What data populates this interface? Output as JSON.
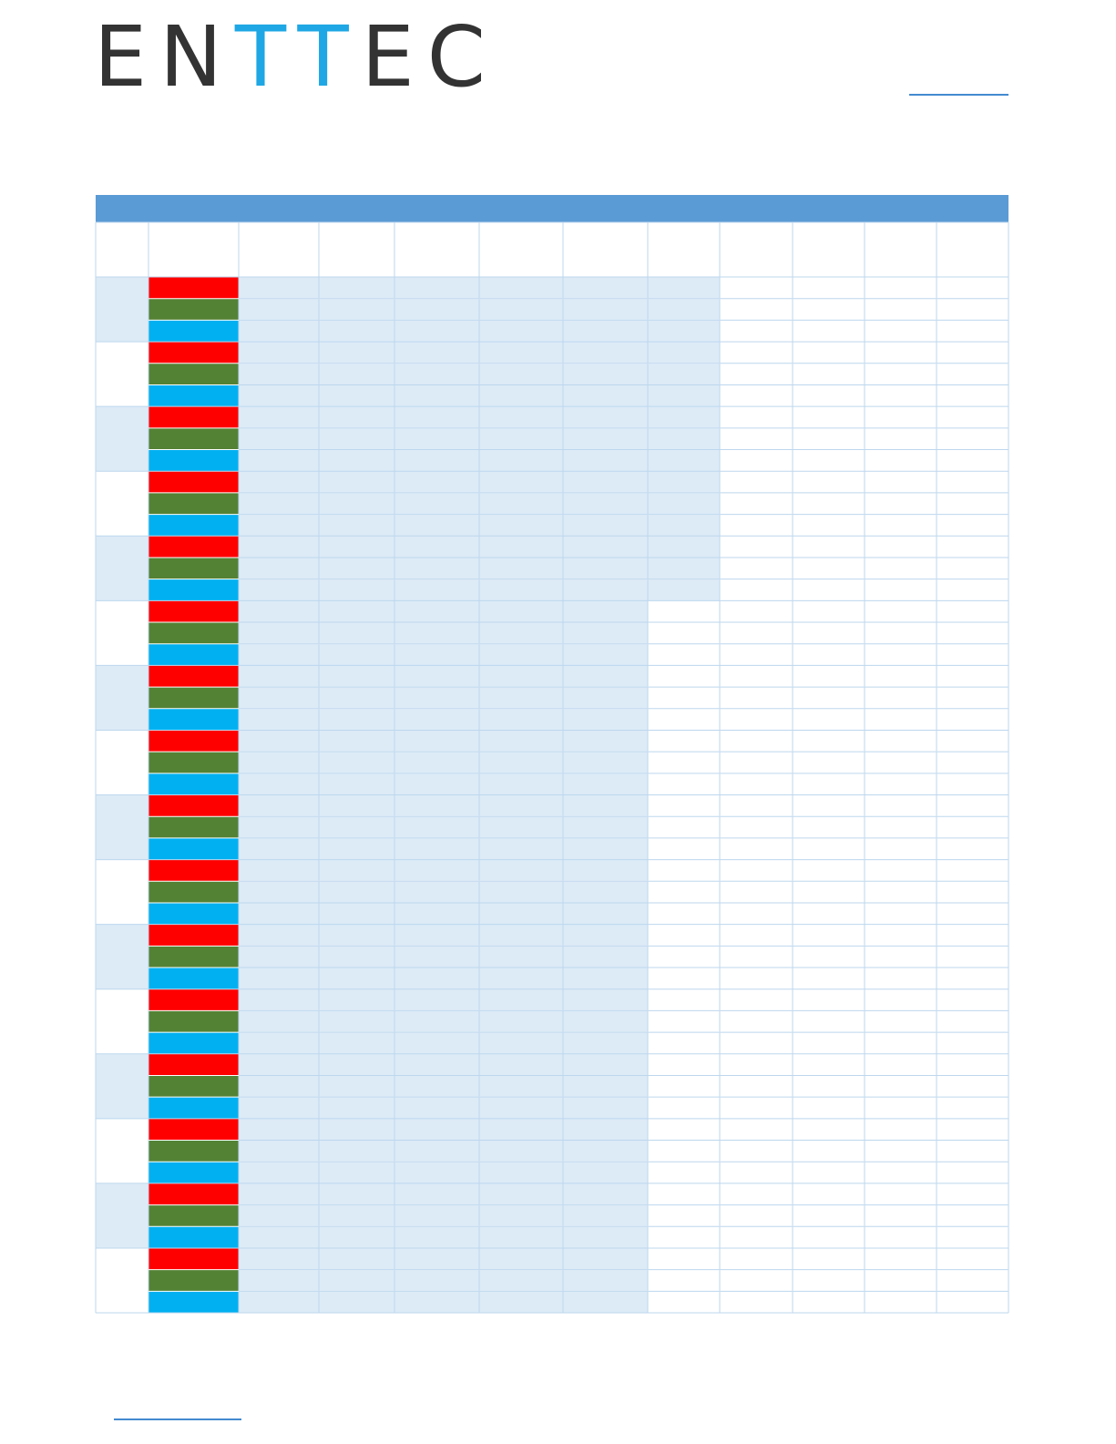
{
  "header": {
    "logo": {
      "parts": [
        "EN",
        "TT",
        "EC"
      ]
    }
  }
}
